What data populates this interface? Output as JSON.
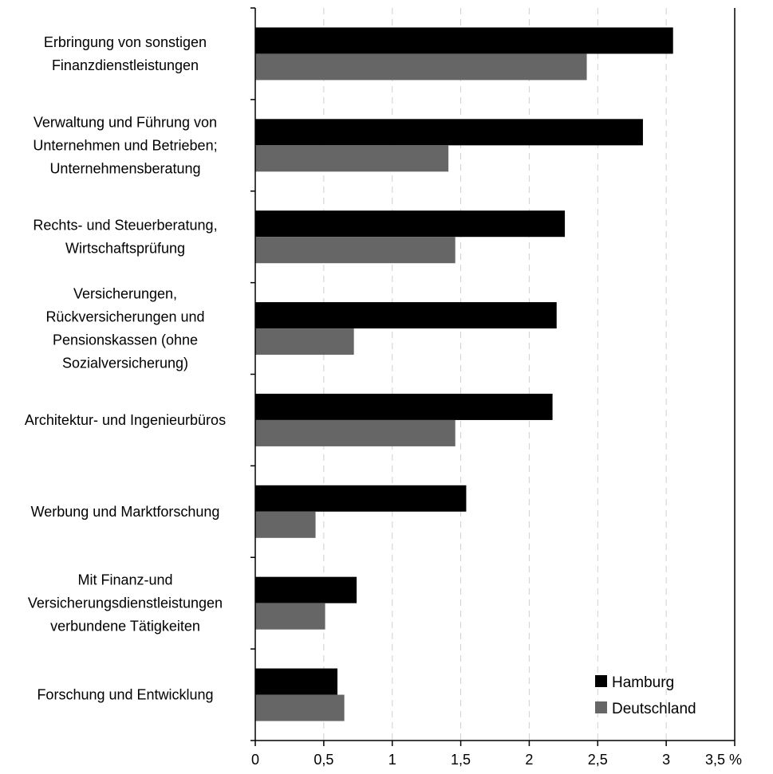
{
  "chart_data": {
    "type": "bar",
    "orientation": "horizontal",
    "categories": [
      [
        "Erbringung von sonstigen",
        "Finanzdienstleistungen"
      ],
      [
        "Verwaltung und Führung von",
        "Unternehmen und Betrieben;",
        "Unternehmensberatung"
      ],
      [
        "Rechts- und Steuerberatung,",
        "Wirtschaftsprüfung"
      ],
      [
        "Versicherungen,",
        "Rückversicherungen und",
        "Pensionskassen (ohne",
        "Sozialversicherung)"
      ],
      [
        "Architektur- und Ingenieurbüros"
      ],
      [
        "Werbung und Marktforschung"
      ],
      [
        "Mit Finanz-und",
        "Versicherungsdienstleistungen",
        "verbundene Tätigkeiten"
      ],
      [
        "Forschung und Entwicklung"
      ]
    ],
    "series": [
      {
        "name": "Hamburg",
        "color": "#000000",
        "values": [
          3.05,
          2.83,
          2.26,
          2.2,
          2.17,
          1.54,
          0.74,
          0.6
        ]
      },
      {
        "name": "Deutschland",
        "color": "#666666",
        "values": [
          2.42,
          1.41,
          1.46,
          0.72,
          1.46,
          0.44,
          0.51,
          0.65
        ]
      }
    ],
    "xlim": [
      0,
      3.5
    ],
    "xticks": [
      0,
      0.5,
      1,
      1.5,
      2,
      2.5,
      3,
      3.5
    ],
    "xtick_labels": [
      "0",
      "0,5",
      "1",
      "1,5",
      "2",
      "2,5",
      "3",
      "3,5 %"
    ],
    "grid": "vertical-dashed",
    "legend": "bottom-right"
  }
}
